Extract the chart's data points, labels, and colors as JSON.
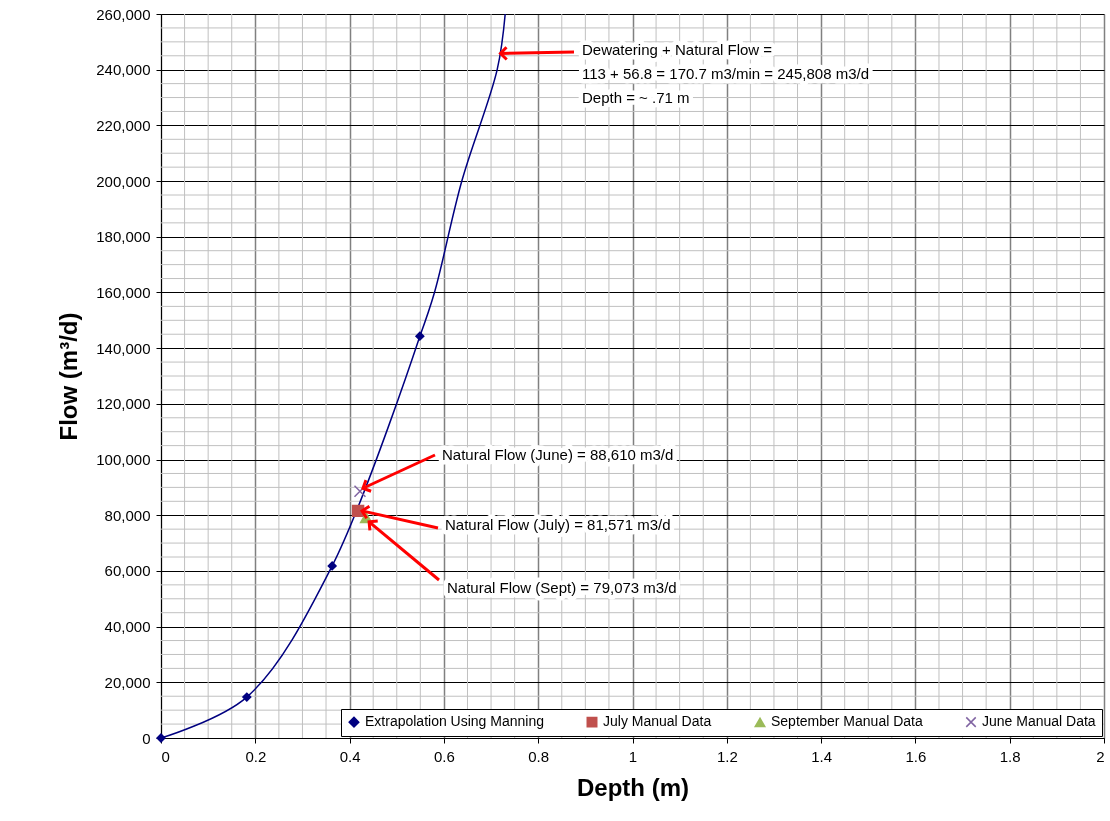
{
  "chart_data": {
    "type": "line",
    "xlabel": "Depth (m)",
    "ylabel": "Flow (m³/d)",
    "xlim": [
      0,
      2
    ],
    "xticks": [
      0,
      0.2,
      0.4,
      0.6,
      0.8,
      1,
      1.2,
      1.4,
      1.6,
      1.8,
      2
    ],
    "ylim": [
      0,
      260000
    ],
    "yticks": [
      {
        "value": 0,
        "label": "0"
      },
      {
        "value": 20000,
        "label": "20,000"
      },
      {
        "value": 40000,
        "label": "40,000"
      },
      {
        "value": 60000,
        "label": "60,000"
      },
      {
        "value": 80000,
        "label": "80,000"
      },
      {
        "value": 100000,
        "label": "100,000"
      },
      {
        "value": 120000,
        "label": "120,000"
      },
      {
        "value": 140000,
        "label": "140,000"
      },
      {
        "value": 160000,
        "label": "160,000"
      },
      {
        "value": 180000,
        "label": "180,000"
      },
      {
        "value": 200000,
        "label": "200,000"
      },
      {
        "value": 220000,
        "label": "220,000"
      },
      {
        "value": 240000,
        "label": "240,000"
      },
      {
        "value": 260000,
        "label": "260,000"
      }
    ],
    "grid": true,
    "legend": "bottom right",
    "series": [
      {
        "name": "Extrapolation Using Manning",
        "color": "#000080",
        "marker": "diamond",
        "x": [
          0,
          0.182,
          0.363,
          0.549
        ],
        "values": [
          0,
          14700,
          61800,
          144300
        ]
      },
      {
        "color": "#000080",
        "marker": "none",
        "x": [
          0.549,
          0.58,
          0.638,
          0.713,
          0.73
        ],
        "values": [
          144300,
          160000,
          200000,
          240000,
          260000
        ]
      },
      {
        "name": "July Manual Data",
        "type": "scatter",
        "color": "#c0504d",
        "marker": "square",
        "x": [
          0.418
        ],
        "values": [
          81571
        ]
      },
      {
        "name": "September Manual Data",
        "type": "scatter",
        "color": "#9bbb59",
        "marker": "triangle",
        "x": [
          0.435
        ],
        "values": [
          79073
        ]
      },
      {
        "name": "June Manual Data",
        "type": "scatter",
        "color": "#8064a2",
        "marker": "cross",
        "x": [
          0.422
        ],
        "values": [
          88610
        ]
      }
    ],
    "annotations": [
      {
        "text": "Dewatering + Natural Flow =\n113 + 56.8 = 170.7 m3/min = 245,808 m3/d\n\nDepth = ~ .71 m",
        "x": 0.72,
        "y": 245808
      },
      {
        "text": "Natural Flow (June) = 88,610 m3/d",
        "x": 0.422,
        "y": 88610
      },
      {
        "text": "Natural Flow (July) = 81,571 m3/d",
        "x": 0.418,
        "y": 81571
      },
      {
        "text": "Natural Flow (Sept) = 79,073 m3/d",
        "x": 0.435,
        "y": 79073
      }
    ]
  }
}
